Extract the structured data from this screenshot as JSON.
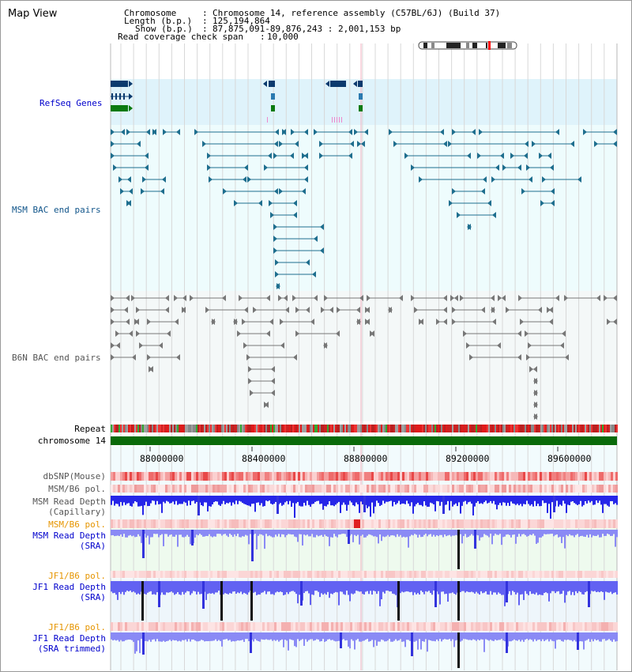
{
  "view": {
    "title": "Map View",
    "chromosome_label": "Chromosome",
    "chromosome_value": "Chromosome 14, reference assembly (C57BL/6J) (Build 37)",
    "length_label": "Length (b.p.)",
    "length_value": "125,194,864",
    "show_label": "Show (b.p.)",
    "show_value": "87,875,091-89,876,243 : 2,001,153 bp",
    "coverage_label": "Read coverage check span",
    "coverage_value": "10,000"
  },
  "tracks": {
    "refseq": "RefSeq Genes",
    "msm_bac": "MSM BAC end pairs",
    "b6n_bac": "B6N BAC end pairs",
    "repeat": "Repeat",
    "chromosome": "chromosome 14",
    "dbsnp": "dbSNP(Mouse)",
    "msm_b6_pol_1": "MSM/B6 pol.",
    "msm_read_depth_cap": "MSM Read Depth\n(Capillary)",
    "msm_b6_pol_2": "MSM/B6 pol.",
    "msm_read_depth_sra": "MSM Read Depth\n(SRA)",
    "jf1_b6_pol_1": "JF1/B6 pol.",
    "jf1_read_depth_sra": "JF1 Read Depth\n(SRA)",
    "jf1_b6_pol_2": "JF1/B6 pol.",
    "jf1_read_depth_trim": "JF1 Read Depth\n(SRA trimmed)"
  },
  "axis": {
    "ticks": [
      "88000000",
      "88400000",
      "88800000",
      "89200000",
      "89600000"
    ]
  },
  "colors": {
    "refseq_bg": "#dff3fb",
    "msm_bg": "#eefcfd",
    "b6n_bg": "#f4f8f8",
    "label_blue": "#0000cc",
    "label_teal": "#11558a",
    "label_gray": "#555555",
    "label_orange": "#e69500",
    "msm_glyph": "#1e6e8e",
    "b6n_glyph": "#777777",
    "refseq_navy": "#0b3a6e",
    "refseq_green": "#0a7a10",
    "chrom_green": "#0a6a0a",
    "depth_blue": "#2a2aee",
    "depth_light": "#8a8af5"
  }
}
